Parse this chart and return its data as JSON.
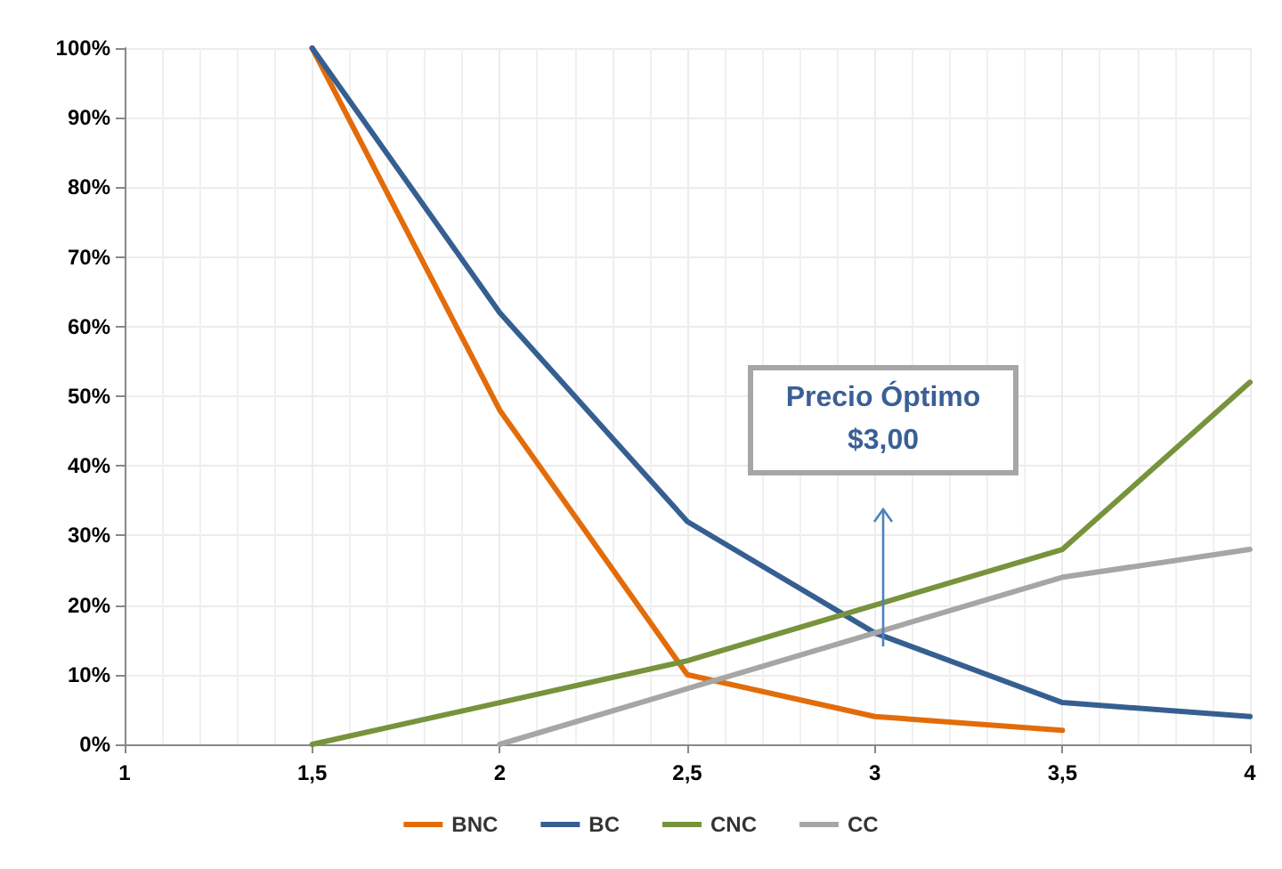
{
  "chart_data": {
    "type": "line",
    "xlim": [
      1,
      4
    ],
    "xticks": [
      1,
      {
        "value": 1.5,
        "label": "1,5"
      },
      2,
      {
        "value": 2.5,
        "label": "2,5"
      },
      3,
      {
        "value": 3.5,
        "label": "3,5"
      },
      4
    ],
    "ylim": [
      0,
      100
    ],
    "yticks": [
      {
        "value": 0,
        "label": "0%"
      },
      {
        "value": 10,
        "label": "10%"
      },
      {
        "value": 20,
        "label": "20%"
      },
      {
        "value": 30,
        "label": "30%"
      },
      {
        "value": 40,
        "label": "40%"
      },
      {
        "value": 50,
        "label": "50%"
      },
      {
        "value": 60,
        "label": "60%"
      },
      {
        "value": 70,
        "label": "70%"
      },
      {
        "value": 80,
        "label": "80%"
      },
      {
        "value": 90,
        "label": "90%"
      },
      {
        "value": 100,
        "label": "100%"
      }
    ],
    "series": [
      {
        "name": "BNC",
        "color": "#e36c0a",
        "x": [
          1.5,
          2,
          2.5,
          3,
          3.5
        ],
        "values": [
          100,
          48,
          10,
          4,
          2
        ]
      },
      {
        "name": "BC",
        "color": "#365f91",
        "x": [
          1.5,
          2,
          2.5,
          3,
          3.5,
          4
        ],
        "values": [
          100,
          62,
          32,
          16,
          6,
          4
        ]
      },
      {
        "name": "CNC",
        "color": "#77933c",
        "x": [
          1.5,
          2,
          2.5,
          3,
          3.5,
          4
        ],
        "values": [
          0,
          6,
          12,
          20,
          28,
          52
        ]
      },
      {
        "name": "CC",
        "color": "#a6a6a6",
        "x": [
          2,
          2.5,
          3,
          3.5,
          4
        ],
        "values": [
          0,
          8,
          16,
          24,
          28
        ]
      }
    ],
    "annotations": [
      "Precio Óptimo\n$3,00"
    ],
    "grid": true,
    "legend": "bottom",
    "marker": "none",
    "line_style": "solid"
  }
}
